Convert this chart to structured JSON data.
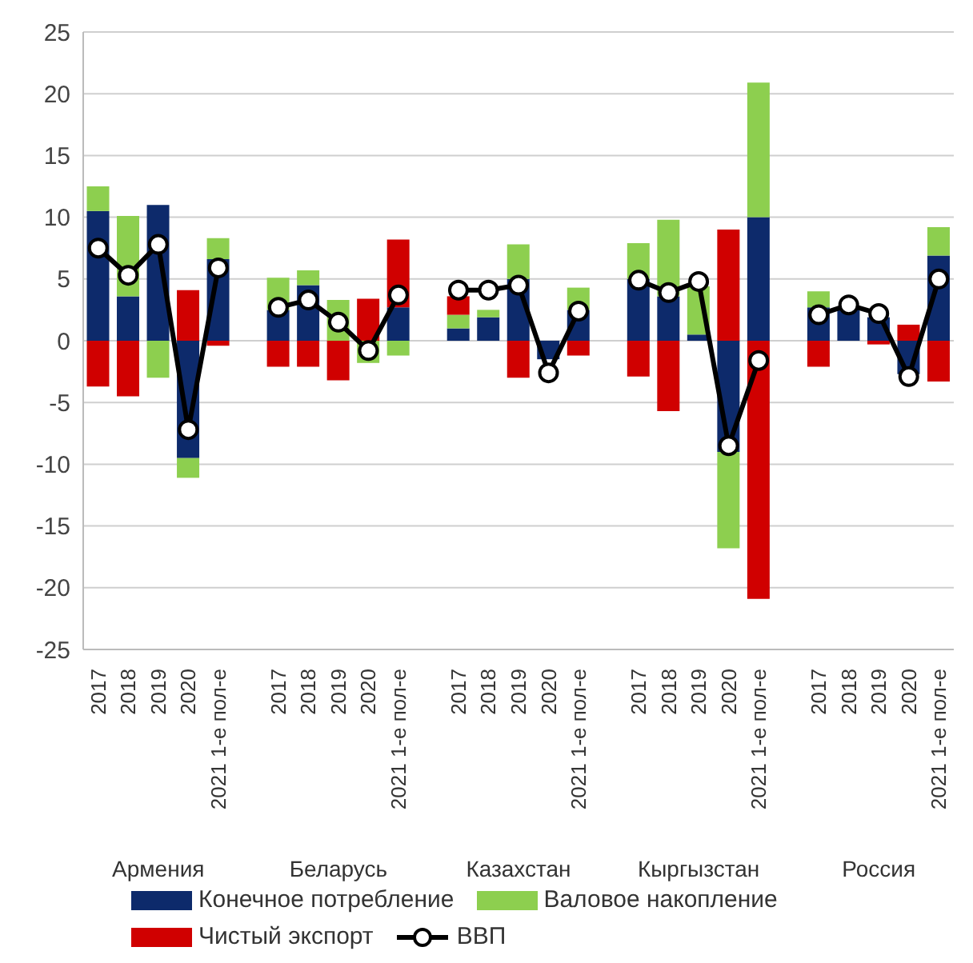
{
  "chart_data": {
    "type": "bar",
    "stacked": true,
    "categories": [
      "2017",
      "2018",
      "2019",
      "2020",
      "2021 1-е пол-е",
      null,
      "2017",
      "2018",
      "2019",
      "2020",
      "2021 1-е пол-е",
      null,
      "2017",
      "2018",
      "2019",
      "2020",
      "2021 1-е пол-е",
      null,
      "2017",
      "2018",
      "2019",
      "2020",
      "2021 1-е пол-е",
      null,
      "2017",
      "2018",
      "2019",
      "2020",
      "2021 1-е пол-е"
    ],
    "series": [
      {
        "name": "Конечное потребление",
        "color": "#0d2a6b",
        "values": [
          10.5,
          3.6,
          11.0,
          -9.5,
          6.6,
          null,
          2.5,
          4.5,
          null,
          null,
          2.7,
          null,
          1.0,
          1.9,
          5.0,
          -1.5,
          2.5,
          null,
          5.0,
          3.6,
          0.5,
          -9.0,
          10.0,
          null,
          2.7,
          2.7,
          1.9,
          -2.7,
          6.9
        ]
      },
      {
        "name": "Валовое накопление",
        "color": "#8dcf4f",
        "values": [
          2.0,
          6.5,
          -3.0,
          -1.6,
          1.7,
          null,
          2.6,
          1.2,
          3.3,
          -1.8,
          -1.2,
          null,
          1.1,
          0.6,
          2.8,
          null,
          1.8,
          null,
          2.9,
          6.2,
          3.9,
          -7.8,
          10.9,
          null,
          1.3,
          null,
          null,
          null,
          2.3
        ]
      },
      {
        "name": "Чистый экспорт",
        "color": "#d00000",
        "values": [
          -3.7,
          -4.5,
          null,
          4.1,
          -0.4,
          null,
          -2.1,
          -2.1,
          -3.2,
          3.4,
          5.5,
          null,
          1.5,
          null,
          -3.0,
          null,
          -1.2,
          null,
          -2.9,
          -5.7,
          null,
          9.0,
          -20.9,
          null,
          -2.1,
          null,
          -0.3,
          1.3,
          -3.3
        ]
      },
      {
        "name": "ВВП",
        "type": "line",
        "marker": "circle",
        "color": "#000000",
        "values": [
          7.5,
          5.3,
          7.8,
          -7.2,
          5.9,
          null,
          2.7,
          3.3,
          1.5,
          -0.8,
          3.7,
          null,
          4.1,
          4.1,
          4.5,
          -2.6,
          2.4,
          null,
          4.9,
          3.9,
          4.8,
          -8.5,
          -1.6,
          null,
          2.1,
          2.9,
          2.2,
          -2.9,
          5.0
        ]
      }
    ],
    "ylim": [
      -25,
      25
    ],
    "yticks": [
      -25,
      -20,
      -15,
      -10,
      -5,
      0,
      5,
      10,
      15,
      20,
      25
    ],
    "grid": "y",
    "legend": "bottom",
    "annotations": [
      "Армения",
      "Беларусь",
      "Казахстан",
      "Кыргызстан",
      "Россия"
    ]
  }
}
